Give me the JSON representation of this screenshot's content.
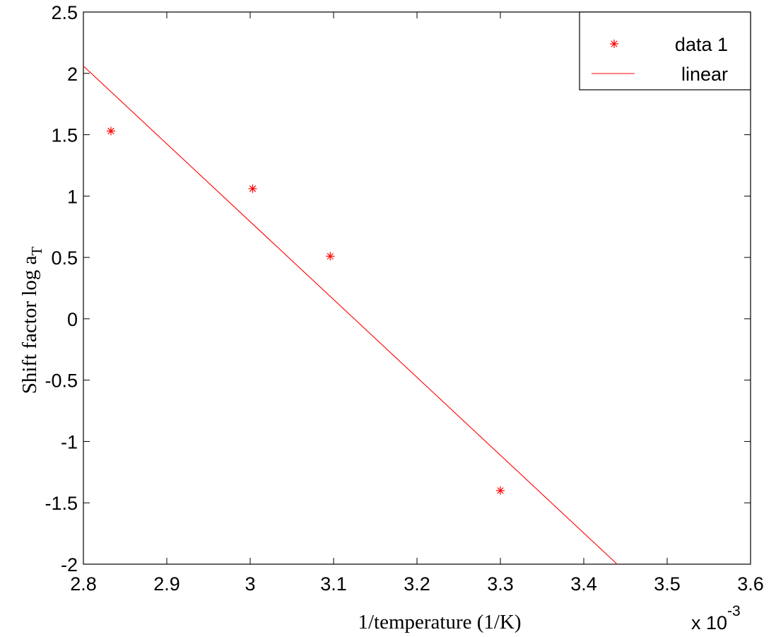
{
  "chart_data": {
    "type": "scatter",
    "xlabel": "1/temperature (1/K)",
    "ylabel_main": "Shift factor log a",
    "ylabel_subscript": "T",
    "x_multiplier_base": "x 10",
    "x_multiplier_exponent": "-3",
    "xlim": [
      2.8,
      3.6
    ],
    "ylim": [
      -2,
      2.5
    ],
    "xticks": [
      2.8,
      2.9,
      3.0,
      3.1,
      3.2,
      3.3,
      3.4,
      3.5,
      3.6
    ],
    "xtick_labels": [
      "2.8",
      "2.9",
      "3",
      "3.1",
      "3.2",
      "3.3",
      "3.4",
      "3.5",
      "3.6"
    ],
    "yticks": [
      -2,
      -1.5,
      -1,
      -0.5,
      0,
      0.5,
      1,
      1.5,
      2,
      2.5
    ],
    "ytick_labels": [
      "-2",
      "-1.5",
      "-1",
      "-0.5",
      "0",
      "0.5",
      "1",
      "1.5",
      "2",
      "2.5"
    ],
    "grid": false,
    "legend_position": "top-right",
    "series": [
      {
        "name": "data 1",
        "kind": "markers",
        "marker": "asterisk",
        "color": "#ff0000",
        "x": [
          2.833,
          3.003,
          3.096,
          3.3
        ],
        "y": [
          1.53,
          1.06,
          0.51,
          -1.4
        ]
      },
      {
        "name": "linear",
        "kind": "line",
        "color": "#ff0000",
        "x": [
          2.8,
          3.44
        ],
        "y": [
          2.06,
          -2.0
        ]
      }
    ]
  }
}
